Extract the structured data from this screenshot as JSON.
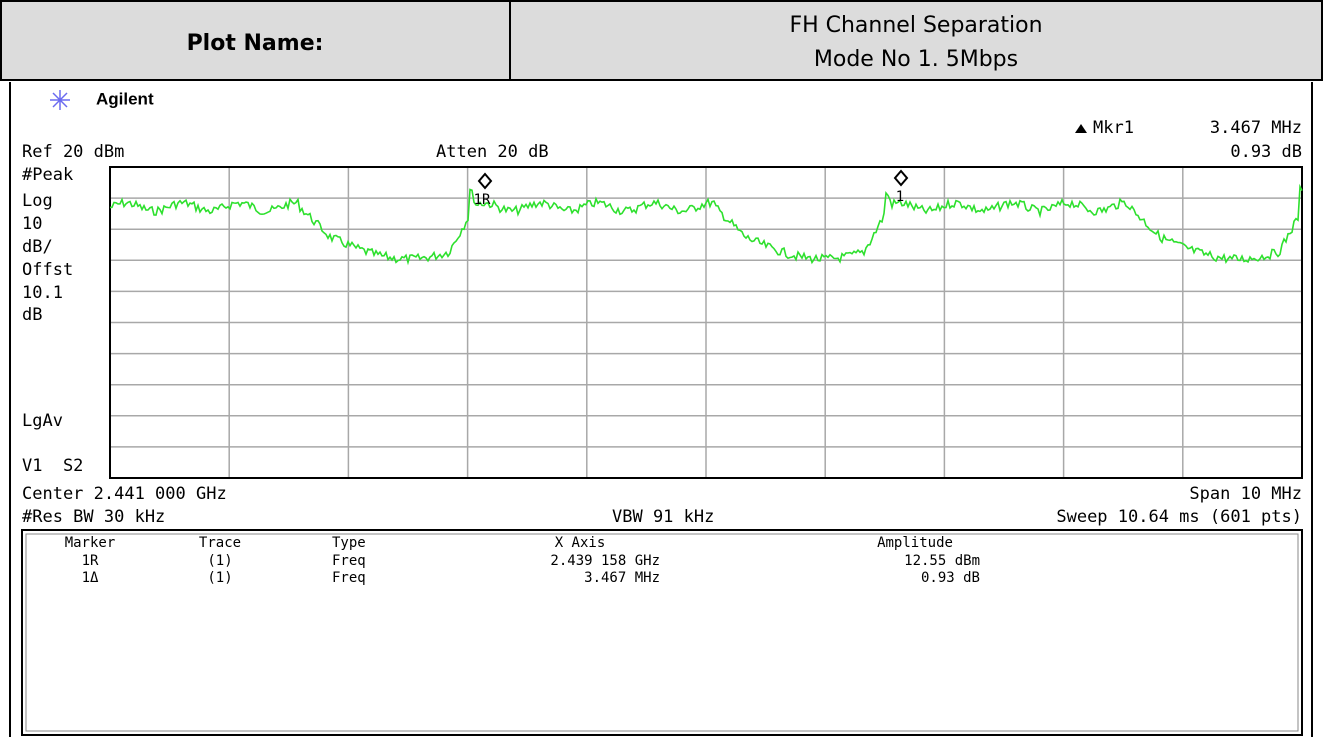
{
  "header": {
    "label": "Plot Name:",
    "title_lines": [
      "FH Channel Separation",
      "Mode No 1. 5Mbps"
    ]
  },
  "brand": "Agilent",
  "readout": {
    "marker": "Mkr1",
    "value": "3.467 MHz",
    "delta": "0.93 dB"
  },
  "top_left": "Ref 20 dBm",
  "top_center": "Atten 20 dB",
  "side_labels": [
    "#Peak",
    "Log",
    "10",
    "dB/",
    "Offst",
    "10.1",
    "dB",
    "LgAv",
    "V1  S2"
  ],
  "bottom_left": "Center 2.441 000 GHz",
  "bottom_right": "Span 10 MHz",
  "footer_left": "#Res BW 30 kHz",
  "footer_center": "VBW 91 kHz",
  "footer_right": "Sweep 10.64 ms (601 pts)",
  "trace_markers": [
    "1R",
    "1"
  ],
  "marker_table": {
    "columns": [
      "Marker",
      "Trace",
      "Type",
      "X Axis",
      "Amplitude"
    ],
    "rows": [
      [
        "1R",
        "(1)",
        "Freq",
        "2.439 158 GHz",
        "12.55 dBm"
      ],
      [
        "1Δ",
        "(1)",
        "Freq",
        "3.467 MHz",
        "0.93 dB"
      ]
    ]
  }
}
